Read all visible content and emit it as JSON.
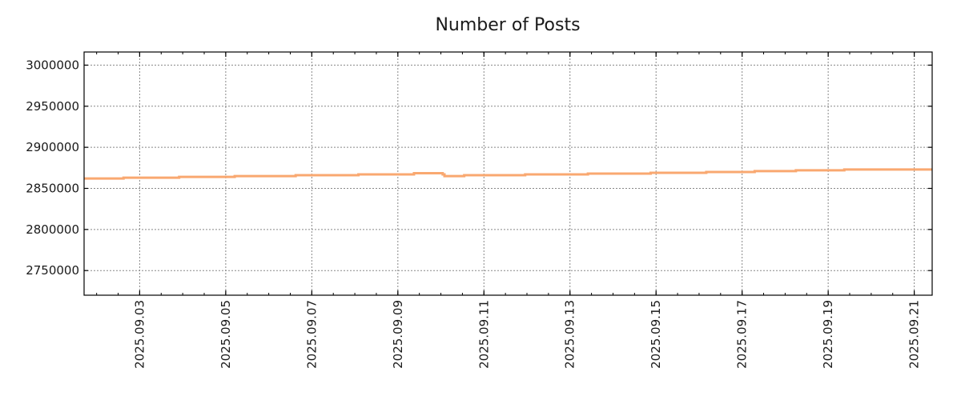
{
  "chart_data": {
    "type": "line",
    "title": "Number of Posts",
    "xlabel": "",
    "ylabel": "",
    "line_style": "step-post",
    "series": [
      {
        "name": "Number of Posts",
        "color": "#f9a870",
        "points": [
          [
            "2025-09-01T17:00",
            2862000
          ],
          [
            "2025-09-02T15:00",
            2863000
          ],
          [
            "2025-09-03T22:00",
            2864000
          ],
          [
            "2025-09-05T05:00",
            2865000
          ],
          [
            "2025-09-06T15:00",
            2866000
          ],
          [
            "2025-09-08T02:00",
            2867000
          ],
          [
            "2025-09-09T09:00",
            2868500
          ],
          [
            "2025-09-10T01:00",
            2867000
          ],
          [
            "2025-09-10T02:00",
            2865000
          ],
          [
            "2025-09-10T13:00",
            2866000
          ],
          [
            "2025-09-11T23:00",
            2867000
          ],
          [
            "2025-09-13T10:00",
            2868000
          ],
          [
            "2025-09-14T21:00",
            2869000
          ],
          [
            "2025-09-16T04:00",
            2870000
          ],
          [
            "2025-09-17T07:00",
            2871000
          ],
          [
            "2025-09-18T06:00",
            2872000
          ],
          [
            "2025-09-19T09:00",
            2873000
          ],
          [
            "2025-09-21T10:00",
            2873000
          ]
        ]
      }
    ],
    "xlim": [
      "2025-09-01T17:00",
      "2025-09-21T10:00"
    ],
    "ylim": [
      2720000,
      3016000
    ],
    "xticks": [
      "2025.09.03",
      "2025.09.05",
      "2025.09.07",
      "2025.09.09",
      "2025.09.11",
      "2025.09.13",
      "2025.09.15",
      "2025.09.17",
      "2025.09.19",
      "2025.09.21"
    ],
    "yticks": [
      "2750000",
      "2800000",
      "2850000",
      "2900000",
      "2950000",
      "3000000"
    ],
    "grid": true,
    "legend": "none"
  }
}
